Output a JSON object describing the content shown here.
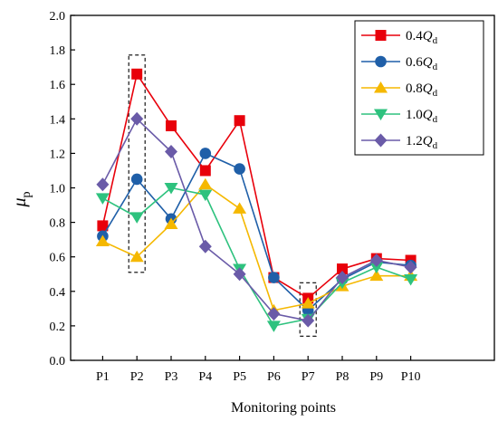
{
  "chart_data": {
    "type": "line",
    "xlabel": "Monitoring points",
    "ylabel": "μp",
    "ylabel_main": "μ",
    "ylabel_sub": "p",
    "categories": [
      "P1",
      "P2",
      "P3",
      "P4",
      "P5",
      "P6",
      "P7",
      "P8",
      "P9",
      "P10"
    ],
    "ylim": [
      0.0,
      2.0
    ],
    "yticks": [
      "0.0",
      "0.2",
      "0.4",
      "0.6",
      "0.8",
      "1.0",
      "1.2",
      "1.4",
      "1.6",
      "1.8",
      "2.0"
    ],
    "grid": false,
    "legend_position": "top-right",
    "highlight_boxes": [
      {
        "category": "P2",
        "y_range": [
          0.51,
          1.77
        ]
      },
      {
        "category": "P7",
        "y_range": [
          0.14,
          0.45
        ]
      }
    ],
    "series": [
      {
        "name": "0.4Qd",
        "name_main": "0.4",
        "name_q": "Q",
        "name_sub": "d",
        "color": "#e8000b",
        "marker": "square",
        "values": [
          0.78,
          1.66,
          1.36,
          1.1,
          1.39,
          0.48,
          0.36,
          0.53,
          0.59,
          0.58
        ]
      },
      {
        "name": "0.6Qd",
        "name_main": "0.6",
        "name_q": "Q",
        "name_sub": "d",
        "color": "#1f5fa8",
        "marker": "circle",
        "values": [
          0.72,
          1.05,
          0.82,
          1.2,
          1.11,
          0.48,
          0.29,
          0.47,
          0.57,
          0.55
        ]
      },
      {
        "name": "0.8Qd",
        "name_main": "0.8",
        "name_q": "Q",
        "name_sub": "d",
        "color": "#f5b800",
        "marker": "triangle-up",
        "values": [
          0.69,
          0.6,
          0.79,
          1.02,
          0.88,
          0.29,
          0.33,
          0.43,
          0.49,
          0.49
        ]
      },
      {
        "name": "1.0Qd",
        "name_main": "1.0",
        "name_q": "Q",
        "name_sub": "d",
        "color": "#2ec27e",
        "marker": "triangle-down",
        "values": [
          0.94,
          0.83,
          1.0,
          0.96,
          0.53,
          0.2,
          0.24,
          0.45,
          0.54,
          0.47
        ]
      },
      {
        "name": "1.2Qd",
        "name_main": "1.2",
        "name_q": "Q",
        "name_sub": "d",
        "color": "#6a5ba8",
        "marker": "diamond",
        "values": [
          1.02,
          1.4,
          1.21,
          0.66,
          0.5,
          0.27,
          0.23,
          0.48,
          0.58,
          0.54
        ]
      }
    ]
  }
}
